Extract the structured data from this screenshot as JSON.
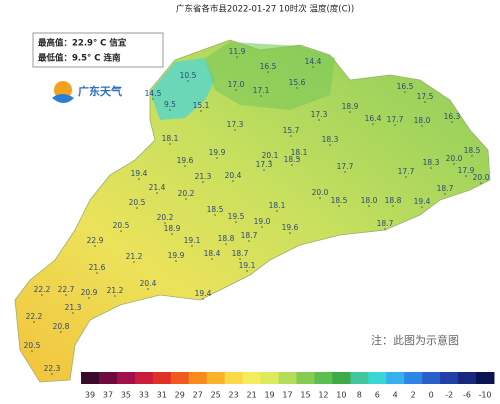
{
  "header": {
    "title": "广东省各市县2022-01-27 10时次 温度(度(C))"
  },
  "info": {
    "max": "最高值：22.9° C 信宜",
    "min": "最低值：9.5° C 连南",
    "logo": "广东天气"
  },
  "note": "注：此图为示意图",
  "stations": [
    "11.9",
    "16.5",
    "14.4",
    "10.5",
    "15.6",
    "17.0",
    "17.1",
    "14.5",
    "9.5",
    "15.1",
    "16.5",
    "17.5",
    "18.9",
    "17.3",
    "16.4",
    "17.7",
    "18.0",
    "16.3",
    "17.3",
    "15.7",
    "18.1",
    "18.3",
    "18.5",
    "19.6",
    "19.9",
    "20.1",
    "18.1",
    "17.3",
    "18.5",
    "17.7",
    "18.3",
    "20.0",
    "17.9",
    "20.0",
    "19.4",
    "21.3",
    "20.4",
    "21.4",
    "20.2",
    "17.7",
    "18.7",
    "20.0",
    "18.5",
    "18.0",
    "18.8",
    "19.4",
    "20.5",
    "18.5",
    "19.5",
    "19.0",
    "18.1",
    "20.2",
    "18.9",
    "19.6",
    "18.7",
    "20.5",
    "19.1",
    "18.8",
    "18.7",
    "22.9",
    "19.9",
    "18.4",
    "18.7",
    "21.2",
    "21.6",
    "19.1",
    "22.2",
    "22.7",
    "20.9",
    "21.2",
    "20.4",
    "19.4",
    "21.3",
    "22.2",
    "20.8",
    "20.5",
    "22.3"
  ],
  "legend": {
    "labels": [
      "39",
      "37",
      "35",
      "33",
      "31",
      "29",
      "27",
      "25",
      "23",
      "21",
      "19",
      "17",
      "15",
      "12",
      "10",
      "8",
      "6",
      "4",
      "2",
      "0",
      "-2",
      "-6",
      "-10"
    ],
    "colors": [
      "#3a0a2a",
      "#6e0a40",
      "#a0104a",
      "#c81e3c",
      "#e0302a",
      "#f05a1e",
      "#f88a1e",
      "#fbb42a",
      "#fbd848",
      "#f4ec5e",
      "#dcea5c",
      "#b4de5a",
      "#86cc52",
      "#5cbe4e",
      "#3caa46",
      "#44c49a",
      "#3ad6d6",
      "#38b0ee",
      "#2e86e4",
      "#2660c8",
      "#2040a8",
      "#18287c",
      "#0a1450"
    ]
  }
}
